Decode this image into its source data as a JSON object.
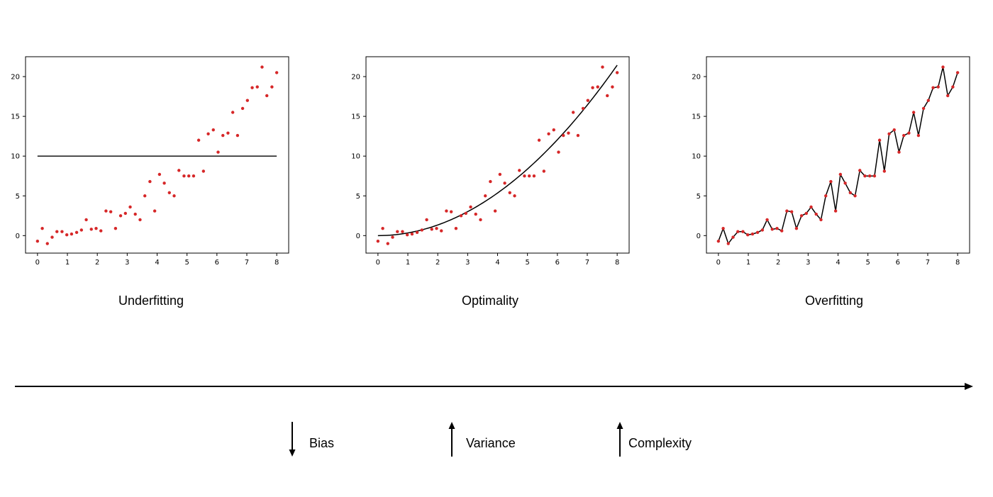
{
  "colors": {
    "points": "#d62728",
    "fit": "#000000",
    "axis": "#000000"
  },
  "chart_data": [
    {
      "type": "scatter",
      "title": "Underfitting",
      "fit": "constant",
      "fit_value": 10,
      "connect_points": false,
      "xlim": [
        -0.4,
        8.4
      ],
      "ylim": [
        -2.2,
        22.5
      ],
      "xticks": [
        0,
        1,
        2,
        3,
        4,
        5,
        6,
        7,
        8
      ],
      "yticks": [
        0,
        5,
        10,
        15,
        20
      ],
      "x": [
        0.0,
        0.16,
        0.33,
        0.49,
        0.65,
        0.82,
        0.98,
        1.14,
        1.31,
        1.47,
        1.63,
        1.8,
        1.96,
        2.12,
        2.29,
        2.45,
        2.61,
        2.78,
        2.94,
        3.1,
        3.27,
        3.43,
        3.59,
        3.76,
        3.92,
        4.08,
        4.24,
        4.41,
        4.57,
        4.73,
        4.9,
        5.06,
        5.22,
        5.39,
        5.55,
        5.71,
        5.88,
        6.04,
        6.2,
        6.37,
        6.53,
        6.69,
        6.86,
        7.02,
        7.18,
        7.35,
        7.51,
        7.67,
        7.84,
        8.0
      ],
      "y": [
        -0.7,
        0.9,
        -1.0,
        -0.2,
        0.5,
        0.5,
        0.1,
        0.2,
        0.4,
        0.7,
        2.0,
        0.8,
        0.9,
        0.6,
        3.1,
        3.0,
        0.9,
        2.5,
        2.8,
        3.6,
        2.7,
        2.0,
        5.0,
        6.8,
        3.1,
        7.7,
        6.6,
        5.4,
        5.0,
        8.2,
        7.5,
        7.5,
        7.5,
        12.0,
        8.1,
        12.8,
        13.3,
        10.5,
        12.6,
        12.9,
        15.5,
        12.6,
        16.0,
        17.0,
        18.6,
        18.7,
        21.2,
        17.6,
        18.7,
        20.5
      ]
    },
    {
      "type": "scatter",
      "title": "Optimality",
      "fit": "quadratic",
      "fit_coefficients": [
        0.0,
        0.0,
        0.335
      ],
      "connect_points": false,
      "xlim": [
        -0.4,
        8.4
      ],
      "ylim": [
        -2.2,
        22.5
      ],
      "xticks": [
        0,
        1,
        2,
        3,
        4,
        5,
        6,
        7,
        8
      ],
      "yticks": [
        0,
        5,
        10,
        15,
        20
      ],
      "x": [
        0.0,
        0.16,
        0.33,
        0.49,
        0.65,
        0.82,
        0.98,
        1.14,
        1.31,
        1.47,
        1.63,
        1.8,
        1.96,
        2.12,
        2.29,
        2.45,
        2.61,
        2.78,
        2.94,
        3.1,
        3.27,
        3.43,
        3.59,
        3.76,
        3.92,
        4.08,
        4.24,
        4.41,
        4.57,
        4.73,
        4.9,
        5.06,
        5.22,
        5.39,
        5.55,
        5.71,
        5.88,
        6.04,
        6.2,
        6.37,
        6.53,
        6.69,
        6.86,
        7.02,
        7.18,
        7.35,
        7.51,
        7.67,
        7.84,
        8.0
      ],
      "y": [
        -0.7,
        0.9,
        -1.0,
        -0.2,
        0.5,
        0.5,
        0.1,
        0.2,
        0.4,
        0.7,
        2.0,
        0.8,
        0.9,
        0.6,
        3.1,
        3.0,
        0.9,
        2.5,
        2.8,
        3.6,
        2.7,
        2.0,
        5.0,
        6.8,
        3.1,
        7.7,
        6.6,
        5.4,
        5.0,
        8.2,
        7.5,
        7.5,
        7.5,
        12.0,
        8.1,
        12.8,
        13.3,
        10.5,
        12.6,
        12.9,
        15.5,
        12.6,
        16.0,
        17.0,
        18.6,
        18.7,
        21.2,
        17.6,
        18.7,
        20.5
      ]
    },
    {
      "type": "line",
      "title": "Overfitting",
      "fit": "interpolate",
      "connect_points": true,
      "xlim": [
        -0.4,
        8.4
      ],
      "ylim": [
        -2.2,
        22.5
      ],
      "xticks": [
        0,
        1,
        2,
        3,
        4,
        5,
        6,
        7,
        8
      ],
      "yticks": [
        0,
        5,
        10,
        15,
        20
      ],
      "x": [
        0.0,
        0.16,
        0.33,
        0.49,
        0.65,
        0.82,
        0.98,
        1.14,
        1.31,
        1.47,
        1.63,
        1.8,
        1.96,
        2.12,
        2.29,
        2.45,
        2.61,
        2.78,
        2.94,
        3.1,
        3.27,
        3.43,
        3.59,
        3.76,
        3.92,
        4.08,
        4.24,
        4.41,
        4.57,
        4.73,
        4.9,
        5.06,
        5.22,
        5.39,
        5.55,
        5.71,
        5.88,
        6.04,
        6.2,
        6.37,
        6.53,
        6.69,
        6.86,
        7.02,
        7.18,
        7.35,
        7.51,
        7.67,
        7.84,
        8.0
      ],
      "y": [
        -0.7,
        0.9,
        -1.0,
        -0.2,
        0.5,
        0.5,
        0.1,
        0.2,
        0.4,
        0.7,
        2.0,
        0.8,
        0.9,
        0.6,
        3.1,
        3.0,
        0.9,
        2.5,
        2.8,
        3.6,
        2.7,
        2.0,
        5.0,
        6.8,
        3.1,
        7.7,
        6.6,
        5.4,
        5.0,
        8.2,
        7.5,
        7.5,
        7.5,
        12.0,
        8.1,
        12.8,
        13.3,
        10.5,
        12.6,
        12.9,
        15.5,
        12.6,
        16.0,
        17.0,
        18.6,
        18.7,
        21.2,
        17.6,
        18.7,
        20.5
      ]
    }
  ],
  "legend": [
    {
      "label": "Bias",
      "direction": "down"
    },
    {
      "label": "Variance",
      "direction": "up"
    },
    {
      "label": "Complexity",
      "direction": "up"
    }
  ]
}
